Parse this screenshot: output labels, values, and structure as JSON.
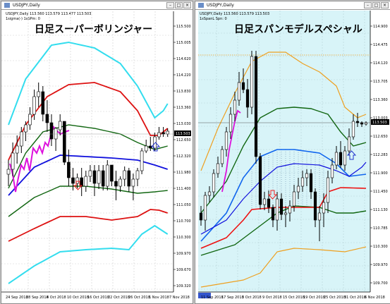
{
  "left_window": {
    "symbol_line": "USDJPY,Daily",
    "info_line": "USDJPY,Daily  113.560 113.579 113.477 113.503",
    "indicator_line": "1sigma(-) 1sSPm: 0",
    "overlay_title": "日足スーパーボリンジャー",
    "price_labels": [
      "115.500",
      "115.005",
      "114.620",
      "114.220",
      "113.830",
      "113.360",
      "113.030",
      "112.650",
      "112.320",
      "111.980",
      "111.400",
      "111.050",
      "110.700",
      "110.300",
      "109.970",
      "109.670",
      "109.320"
    ],
    "current_price": "113.503",
    "date_labels": [
      "24 Sep 2018",
      "28 Sep 2018",
      "4 Oct 2018",
      "10 Oct 2018",
      "16 Oct 2018",
      "22 Oct 2018",
      "26 Oct 2018",
      "1 Nov 2018",
      "7 Nov 2018"
    ]
  },
  "right_window": {
    "symbol_line": "USDJPY,Daily",
    "info_line": "USDJPY,Daily  113.560 113.579 113.503",
    "indicator_line": "1sSpanL Spn: 0",
    "overlay_title": "日足スパンモデルスペシャル",
    "price_labels": [
      "114.900",
      "114.475",
      "114.120",
      "113.705",
      "113.360",
      "113.003",
      "112.650",
      "112.283",
      "111.900",
      "111.450",
      "111.130",
      "110.785",
      "110.300",
      "109.970",
      "109.700"
    ],
    "current_price": "113.503",
    "date_labels": [
      "11 Sep 2018",
      "17 Sep 2018",
      "3 Oct 2018",
      "9 Oct 2018",
      "15 Oct 2018",
      "19 Oct 2018",
      "25 Oct 2018",
      "31 Oct 2018",
      "6 Nov 2018"
    ]
  },
  "colors": {
    "band3": "#33ddee",
    "band2": "#dd1111",
    "band1": "#116611",
    "mid": "#1111dd",
    "lagging": "#dd11dd",
    "span_fill": "#d8f4f8",
    "orange": "#eea020",
    "red_line": "#ee1111",
    "blue_line": "#1166ee",
    "signal_red": "#ee2222",
    "signal_blue": "#2233cc"
  },
  "window_buttons": [
    "minimize-icon",
    "restore-icon",
    "close-icon"
  ]
}
